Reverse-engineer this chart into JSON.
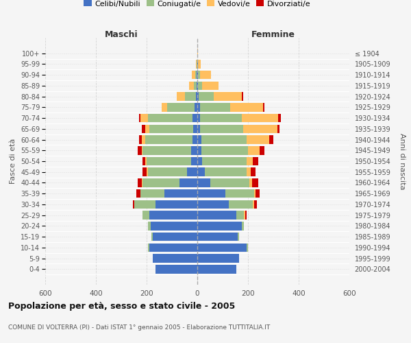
{
  "age_groups": [
    "0-4",
    "5-9",
    "10-14",
    "15-19",
    "20-24",
    "25-29",
    "30-34",
    "35-39",
    "40-44",
    "45-49",
    "50-54",
    "55-59",
    "60-64",
    "65-69",
    "70-74",
    "75-79",
    "80-84",
    "85-89",
    "90-94",
    "95-99",
    "100+"
  ],
  "birth_years": [
    "2000-2004",
    "1995-1999",
    "1990-1994",
    "1985-1989",
    "1980-1984",
    "1975-1979",
    "1970-1974",
    "1965-1969",
    "1960-1964",
    "1955-1959",
    "1950-1954",
    "1945-1949",
    "1940-1944",
    "1935-1939",
    "1930-1934",
    "1925-1929",
    "1920-1924",
    "1915-1919",
    "1910-1914",
    "1905-1909",
    "≤ 1904"
  ],
  "maschi": {
    "celibi": [
      165,
      175,
      190,
      175,
      185,
      190,
      165,
      130,
      70,
      40,
      25,
      25,
      20,
      15,
      20,
      10,
      5,
      3,
      2,
      1,
      1
    ],
    "coniugati": [
      0,
      0,
      5,
      5,
      10,
      25,
      85,
      95,
      145,
      155,
      175,
      190,
      185,
      175,
      175,
      110,
      45,
      10,
      5,
      2,
      0
    ],
    "vedovi": [
      0,
      0,
      0,
      0,
      0,
      0,
      0,
      0,
      5,
      5,
      5,
      5,
      15,
      15,
      30,
      20,
      30,
      20,
      15,
      2,
      0
    ],
    "divorziati": [
      0,
      0,
      0,
      0,
      0,
      0,
      5,
      15,
      15,
      15,
      10,
      15,
      10,
      15,
      5,
      0,
      0,
      0,
      0,
      0,
      0
    ]
  },
  "femmine": {
    "nubili": [
      155,
      165,
      195,
      160,
      175,
      155,
      125,
      110,
      50,
      30,
      20,
      15,
      15,
      10,
      10,
      10,
      5,
      3,
      2,
      2,
      1
    ],
    "coniugate": [
      0,
      0,
      5,
      5,
      10,
      30,
      95,
      115,
      155,
      165,
      175,
      185,
      180,
      170,
      165,
      120,
      60,
      15,
      8,
      2,
      0
    ],
    "vedove": [
      0,
      0,
      0,
      0,
      0,
      5,
      5,
      5,
      10,
      15,
      25,
      45,
      90,
      135,
      145,
      130,
      110,
      65,
      45,
      10,
      1
    ],
    "divorziate": [
      0,
      0,
      0,
      0,
      0,
      5,
      10,
      15,
      25,
      20,
      20,
      20,
      15,
      10,
      10,
      5,
      5,
      0,
      0,
      0,
      0
    ]
  },
  "colors": {
    "celibi": "#4472C4",
    "coniugati": "#9DC088",
    "vedovi": "#FFBF5F",
    "divorziati": "#CC0000"
  },
  "xlim": [
    -600,
    600
  ],
  "xticks": [
    -600,
    -400,
    -200,
    0,
    200,
    400,
    600
  ],
  "title": "Popolazione per età, sesso e stato civile - 2005",
  "subtitle": "COMUNE DI VOLTERRA (PI) - Dati ISTAT 1° gennaio 2005 - Elaborazione TUTTITALIA.IT",
  "ylabel_left": "Fasce di età",
  "ylabel_right": "Anni di nascita",
  "header_maschi": "Maschi",
  "header_femmine": "Femmine",
  "legend_labels": [
    "Celibi/Nubili",
    "Coniugati/e",
    "Vedovi/e",
    "Divorziati/e"
  ],
  "background_color": "#f5f5f5"
}
